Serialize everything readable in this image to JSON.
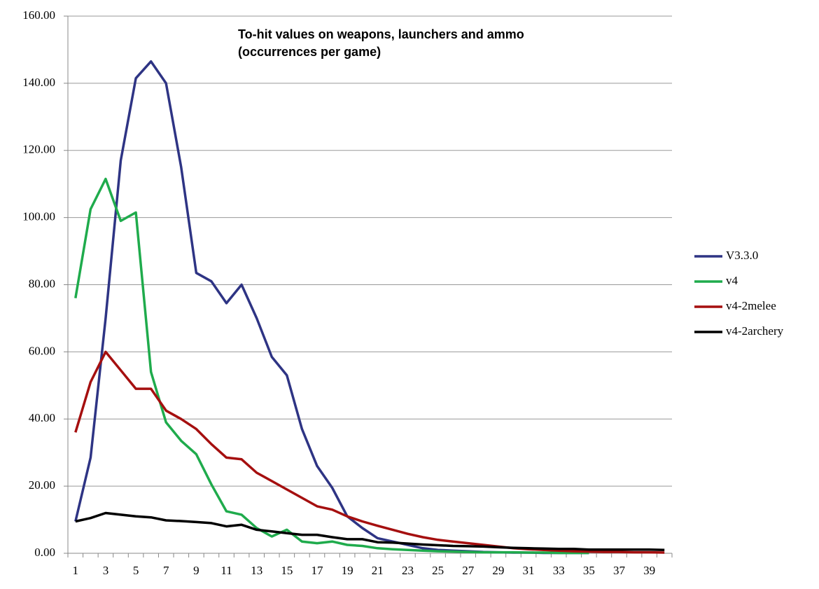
{
  "chart_data": {
    "type": "line",
    "title": "To-hit values on weapons, launchers and ammo",
    "subtitle": "(occurrences per game)",
    "categories": [
      "1",
      null,
      "3",
      null,
      "5",
      null,
      "7",
      null,
      "9",
      null,
      "11",
      null,
      "13",
      null,
      "15",
      null,
      "17",
      null,
      "19",
      null,
      "21",
      null,
      "23",
      null,
      "25",
      null,
      "27",
      null,
      "29",
      null,
      "31",
      null,
      "33",
      null,
      "35",
      null,
      "37",
      null,
      "39",
      null
    ],
    "series": [
      {
        "name": "V3.3.0",
        "color": "#2e3484",
        "values": [
          9.5,
          28.5,
          70,
          117,
          141.5,
          146.5,
          140,
          115,
          83.5,
          81,
          74.5,
          80,
          70,
          58.5,
          53,
          37,
          26,
          19.5,
          11,
          7.5,
          4.5,
          3.5,
          2.5,
          1.5,
          1,
          0.8,
          0.6,
          0.4,
          0.3,
          0.2,
          0.2,
          0.1,
          0.1,
          0.1,
          0.1,
          null,
          null,
          null,
          null,
          null
        ]
      },
      {
        "name": "v4",
        "color": "#1fab4c",
        "values": [
          76,
          102.5,
          111.5,
          99,
          101.5,
          54,
          39,
          33.5,
          29.5,
          20.5,
          12.5,
          11.5,
          7.5,
          5,
          7,
          3.5,
          3,
          3.5,
          2.5,
          2.2,
          1.5,
          1.2,
          1,
          0.8,
          0.6,
          0.5,
          0.4,
          0.3,
          0.3,
          0.3,
          0.2,
          0.2,
          0.1,
          0.1,
          0.1,
          null,
          null,
          null,
          null,
          null
        ]
      },
      {
        "name": "v4-2melee",
        "color": "#a50f0f",
        "values": [
          36,
          51,
          60,
          54.5,
          49,
          49,
          42.5,
          40,
          37,
          32.5,
          28.5,
          28,
          24,
          21.5,
          19,
          16.5,
          14,
          13,
          11,
          9.5,
          8.2,
          7,
          5.8,
          4.8,
          4,
          3.5,
          3,
          2.5,
          2,
          1.5,
          1.2,
          1,
          0.8,
          0.6,
          0.5,
          0.4,
          0.4,
          0.3,
          0.3,
          0.2
        ]
      },
      {
        "name": "v4-2archery",
        "color": "#000000",
        "values": [
          9.5,
          10.5,
          12,
          11.5,
          11,
          10.7,
          9.8,
          9.6,
          9.3,
          9,
          8,
          8.5,
          7,
          6.5,
          6,
          5.5,
          5.5,
          4.8,
          4.2,
          4.2,
          3.3,
          3.2,
          2.9,
          2.6,
          2.4,
          2.2,
          2.1,
          2,
          1.8,
          1.6,
          1.5,
          1.4,
          1.3,
          1.3,
          1.1,
          1.1,
          1.1,
          1.1,
          1.1,
          1.0
        ]
      }
    ],
    "ylim": [
      0,
      160
    ],
    "yticks": [
      {
        "value": 0,
        "label": "0.00"
      },
      {
        "value": 20,
        "label": "20.00"
      },
      {
        "value": 40,
        "label": "40.00"
      },
      {
        "value": 60,
        "label": "60.00"
      },
      {
        "value": 80,
        "label": "80.00"
      },
      {
        "value": 100,
        "label": "100.00"
      },
      {
        "value": 120,
        "label": "120.00"
      },
      {
        "value": 140,
        "label": "140.00"
      },
      {
        "value": 160,
        "label": "160.00"
      }
    ],
    "grid": true,
    "legend": "right"
  }
}
